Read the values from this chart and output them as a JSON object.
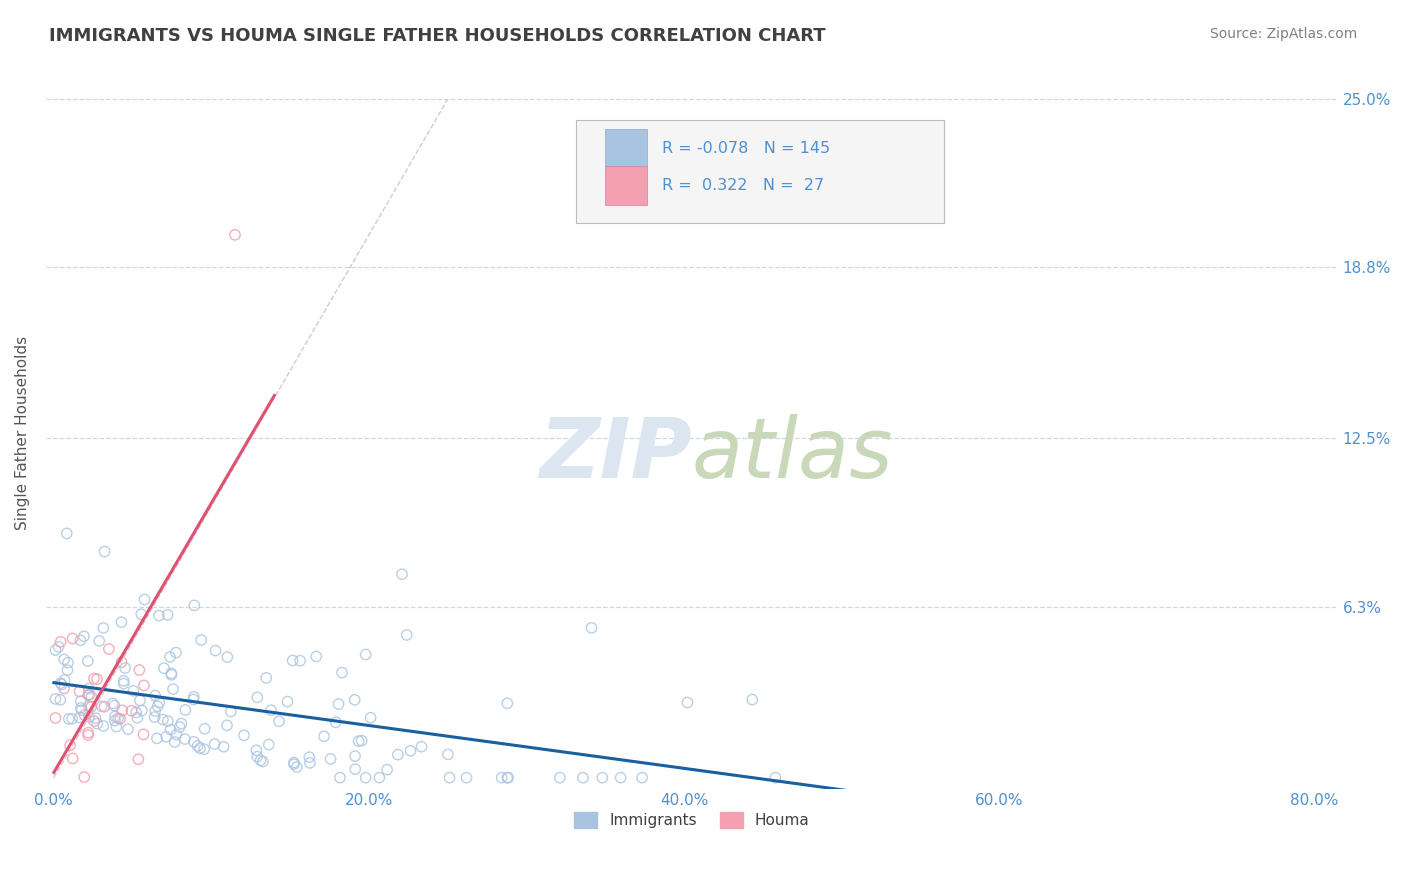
{
  "title": "IMMIGRANTS VS HOUMA SINGLE FATHER HOUSEHOLDS CORRELATION CHART",
  "source": "Source: ZipAtlas.com",
  "xlabel_bottom": "Immigrants",
  "ylabel": "Single Father Households",
  "xlim": [
    0.0,
    0.8
  ],
  "ylim": [
    0.0,
    0.25
  ],
  "xtick_labels": [
    "0.0%",
    "20.0%",
    "40.0%",
    "60.0%",
    "80.0%"
  ],
  "xtick_values": [
    0.0,
    0.2,
    0.4,
    0.6,
    0.8
  ],
  "ytick_labels": [
    "6.3%",
    "12.5%",
    "18.8%",
    "25.0%"
  ],
  "ytick_values": [
    0.063,
    0.125,
    0.188,
    0.25
  ],
  "R_immigrants": -0.078,
  "N_immigrants": 145,
  "R_houma": 0.322,
  "N_houma": 27,
  "immigrant_color": "#a8c4e0",
  "houma_color": "#f4a0b0",
  "immigrant_line_color": "#1a5fa0",
  "houma_line_color": "#e05070",
  "diagonal_color": "#d8c0c8",
  "background_color": "#ffffff",
  "grid_color": "#d0d8e8",
  "watermark_color": "#dce6f0",
  "title_color": "#404040",
  "axis_label_color": "#5090d0",
  "source_color": "#808080"
}
